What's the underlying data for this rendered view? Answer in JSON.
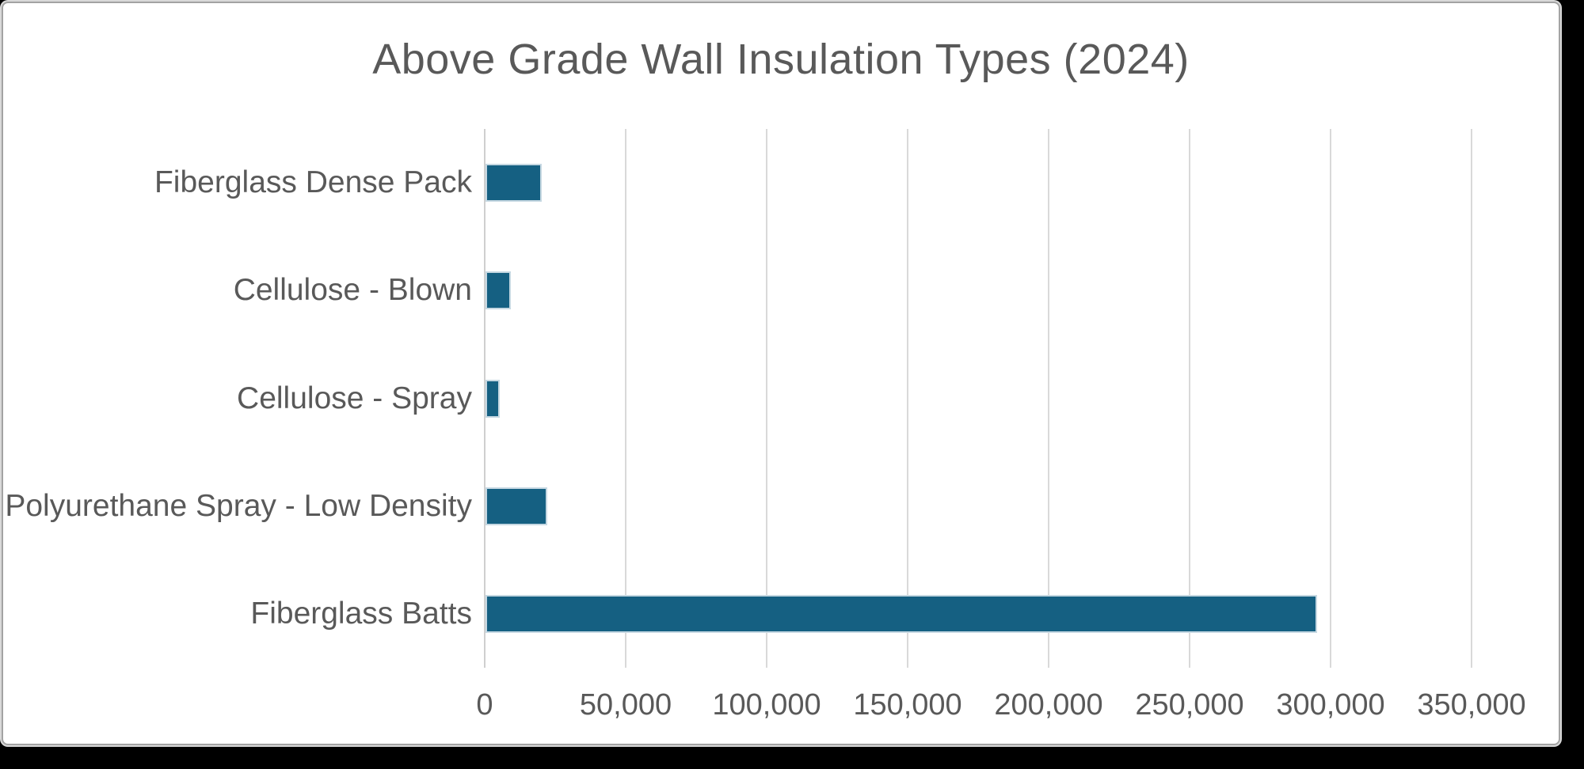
{
  "page": {
    "background_color": "#000000",
    "card_background": "#ffffff",
    "card_border_color": "#a3a3a3"
  },
  "chart_data": {
    "type": "bar",
    "orientation": "horizontal",
    "title": "Above Grade Wall Insulation Types (2024)",
    "categories": [
      "Fiberglass Dense Pack",
      "Cellulose - Blown",
      "Cellulose - Spray",
      "Polyurethane Spray - Low Density",
      "Fiberglass Batts"
    ],
    "values": [
      20000,
      9000,
      5000,
      22000,
      295000
    ],
    "category_order_note": "listed top to bottom as displayed",
    "xlabel": "",
    "ylabel": "",
    "xlim": [
      0,
      350000
    ],
    "x_tick_step": 50000,
    "x_tick_labels": [
      "0",
      "50,000",
      "100,000",
      "150,000",
      "200,000",
      "250,000",
      "300,000",
      "350,000"
    ],
    "grid": true,
    "legend": false,
    "bar_color": "#156082",
    "bar_border_color": "#c6d8e2",
    "gridline_color": "#d9d9d9",
    "axis_line_color": "#cfcfcf",
    "text_color": "#595959",
    "title_color": "#595959"
  }
}
